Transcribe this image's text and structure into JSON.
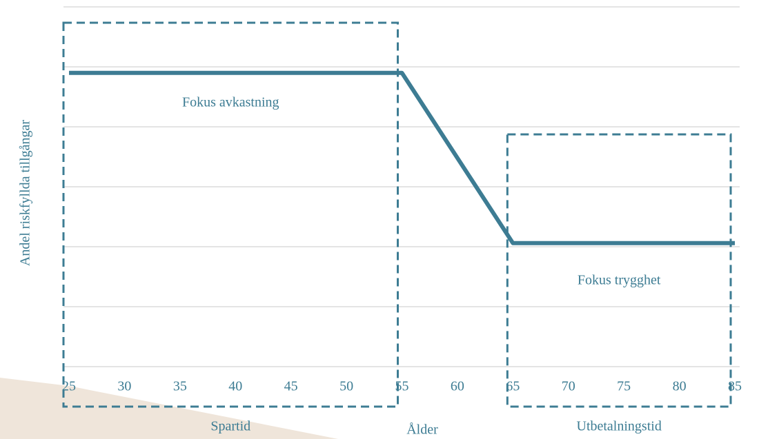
{
  "chart_data": {
    "type": "line",
    "x": [
      25,
      55,
      65,
      85
    ],
    "series": [
      {
        "color": "#3d7c93",
        "values": [
          4.9,
          4.9,
          2.06,
          2.06
        ]
      }
    ],
    "xlim": [
      25,
      85
    ],
    "xticks": [
      25,
      30,
      35,
      40,
      45,
      50,
      55,
      60,
      65,
      70,
      75,
      80,
      85
    ],
    "ylim": [
      0,
      6
    ],
    "yticks": [
      0,
      1,
      2,
      3,
      4,
      5,
      6
    ],
    "grid": true,
    "xlabel": "Ålder",
    "ylabel": "Andel riskfyllda tillgångar",
    "regions": [
      {
        "label": "Fokus avkastning",
        "sublabel": "Spartid",
        "x": [
          25,
          55
        ]
      },
      {
        "label": "Fokus trygghet",
        "sublabel": "Utbetalningstid",
        "x": [
          65,
          85
        ]
      }
    ]
  }
}
